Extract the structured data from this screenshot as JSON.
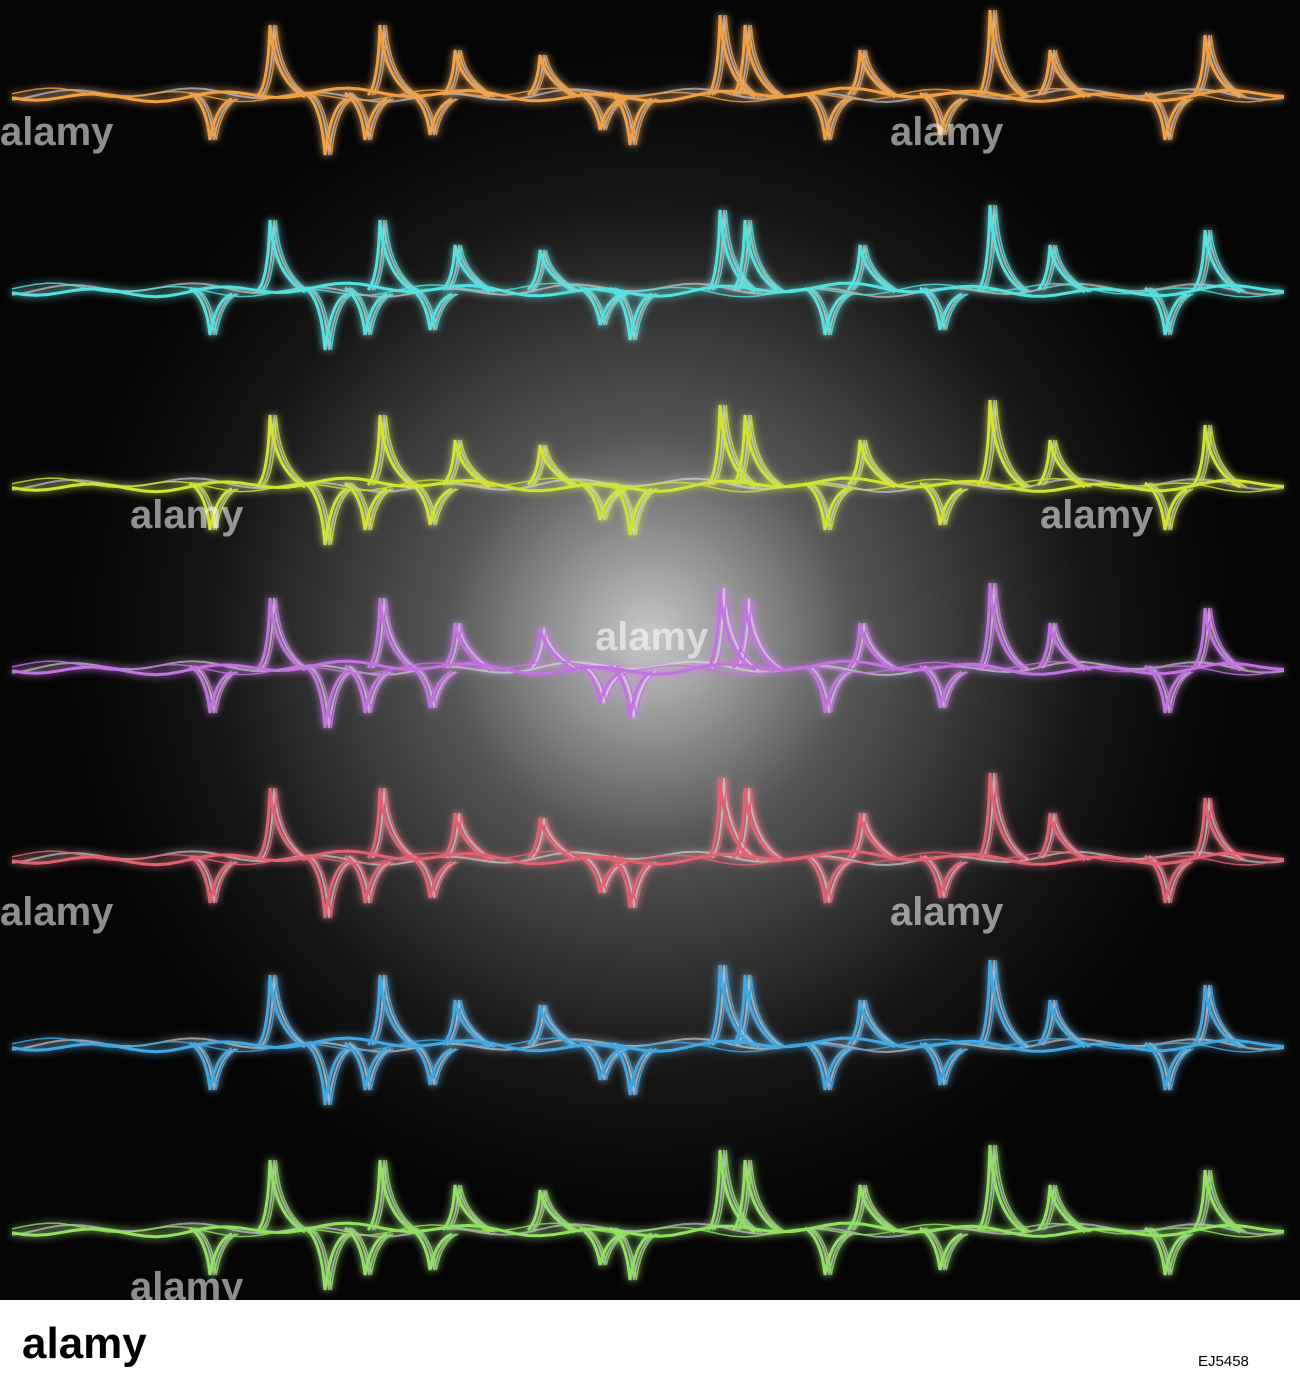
{
  "watermark": "alamy",
  "footer": {
    "logo": "alamy",
    "image_id": "EJ5458"
  }
}
